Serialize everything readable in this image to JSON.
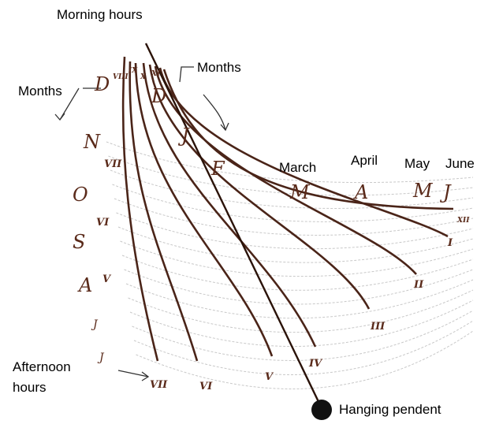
{
  "labels": {
    "morning": "Morning hours",
    "months_left": "Months",
    "months_right": "Months",
    "march": "March",
    "april": "April",
    "may": "May",
    "june": "June",
    "afternoon": [
      "Afternoon",
      "hours"
    ],
    "pendent": "Hanging pendent"
  },
  "handwritten": {
    "months_top": [
      "D",
      "J",
      "F",
      "M",
      "A",
      "M",
      "J"
    ],
    "months_left": [
      "D",
      "N",
      "O",
      "S",
      "A",
      "J",
      "J"
    ],
    "hours_top": [
      "VIII",
      "IX",
      "X",
      "XI"
    ],
    "hours_left": [
      "VII",
      "VI",
      "V"
    ],
    "hours_bottom": [
      "VII",
      "VI",
      "V",
      "IV"
    ],
    "hours_right": [
      "III",
      "II",
      "I",
      "XII"
    ]
  }
}
